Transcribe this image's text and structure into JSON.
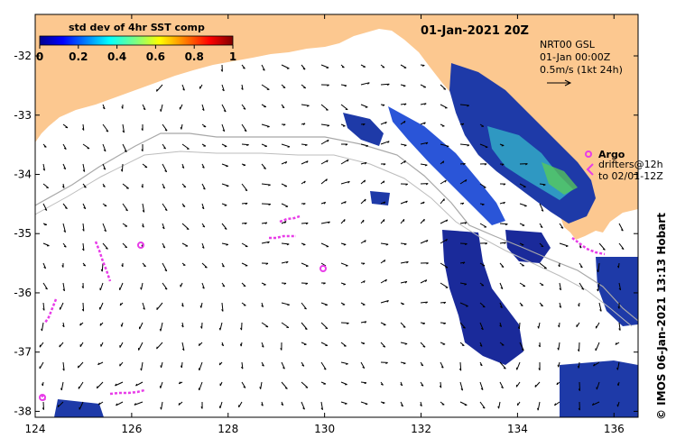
{
  "map": {
    "title": "01-Jan-2021 20Z",
    "x_ticks": [
      "124",
      "126",
      "128",
      "130",
      "132",
      "134",
      "136"
    ],
    "y_ticks": [
      "-32",
      "-33",
      "-34",
      "-35",
      "-36",
      "-37",
      "-38"
    ],
    "lon_range": [
      124,
      136.5
    ],
    "lat_range": [
      -38.1,
      -31.3
    ]
  },
  "colorbar": {
    "title": "std dev of 4hr SST comp",
    "ticks": [
      "0",
      "0.2",
      "0.4",
      "0.6",
      "0.8",
      "1"
    ]
  },
  "currents": {
    "source": "NRT00 GSL",
    "time": "01-Jan 00:00Z",
    "scale": "0.5m/s (1kt 24h)"
  },
  "legend": {
    "argo_label": "Argo",
    "drifters_label": "drifters@12h",
    "drifters_range": "to 02/01-12Z"
  },
  "credit": "© IMOS 06-Jan-2021 13:13 Hobart",
  "colors": {
    "land": "#fcc890",
    "argo": "#e83ce8",
    "sst_dark": "#1a2a9a",
    "sst_mid": "#2a55d8",
    "sst_cyan": "#33b0c8",
    "sst_green": "#5acc55"
  }
}
